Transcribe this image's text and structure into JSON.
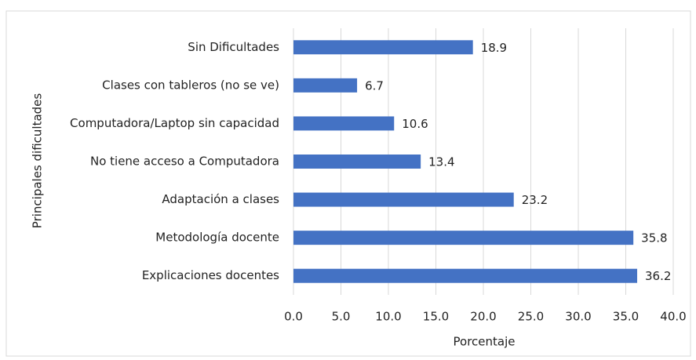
{
  "chart_data": {
    "type": "barh",
    "categories": [
      "Sin Dificultades",
      "Clases con tableros (no se ve)",
      "Computadora/Laptop sin capacidad",
      "No tiene acceso a Computadora",
      "Adaptación a clases",
      "Metodología docente",
      "Explicaciones docentes"
    ],
    "values": [
      18.9,
      6.7,
      10.6,
      13.4,
      23.2,
      35.8,
      36.2
    ],
    "color": "#4472c4",
    "x_label": "Porcentaje",
    "y_label": "Principales dificultades",
    "xlim": [
      0,
      40
    ],
    "xticks": [
      {
        "value": 0,
        "label": "0.0"
      },
      {
        "value": 5,
        "label": "5.0"
      },
      {
        "value": 10,
        "label": "10.0"
      },
      {
        "value": 15,
        "label": "15.0"
      },
      {
        "value": 20,
        "label": "20.0"
      },
      {
        "value": 25,
        "label": "25.0"
      },
      {
        "value": 30,
        "label": "30.0"
      },
      {
        "value": 35,
        "label": "35.0"
      },
      {
        "value": 40,
        "label": "40.0"
      }
    ],
    "grid": true
  }
}
